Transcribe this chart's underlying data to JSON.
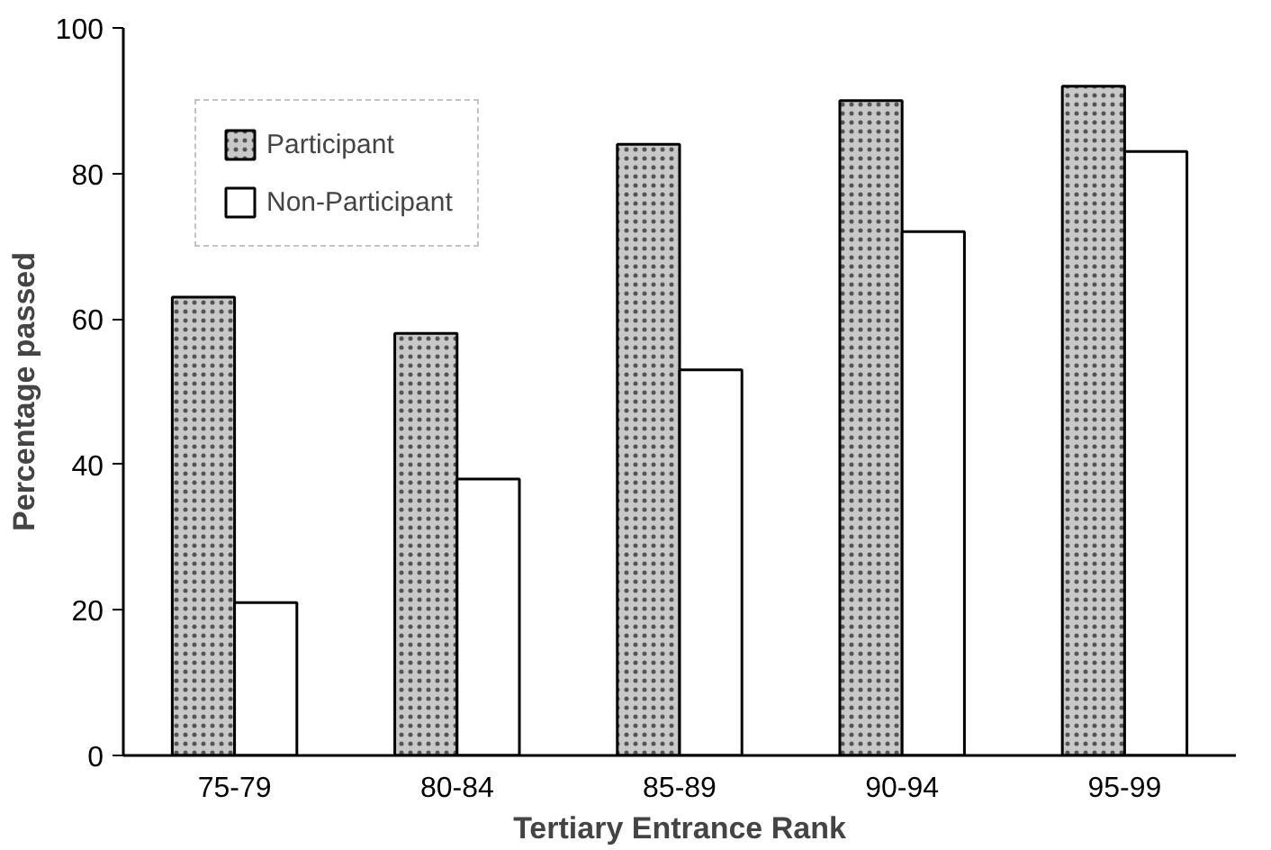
{
  "chart_data": {
    "type": "bar",
    "xlabel": "Tertiary Entrance Rank",
    "ylabel": "Percentage passed",
    "categories": [
      "75-79",
      "80-84",
      "85-89",
      "90-94",
      "95-99"
    ],
    "series": [
      {
        "name": "Participant",
        "color": "#c8c8c8",
        "values": [
          63,
          58,
          84,
          90,
          92
        ]
      },
      {
        "name": "Non-Participant",
        "color": "#ffffff",
        "values": [
          21,
          38,
          53,
          72,
          83
        ]
      }
    ],
    "ylim": [
      0,
      100
    ],
    "yticks": [
      0,
      20,
      40,
      60,
      80,
      100
    ],
    "grid": false,
    "legend": "top left"
  }
}
